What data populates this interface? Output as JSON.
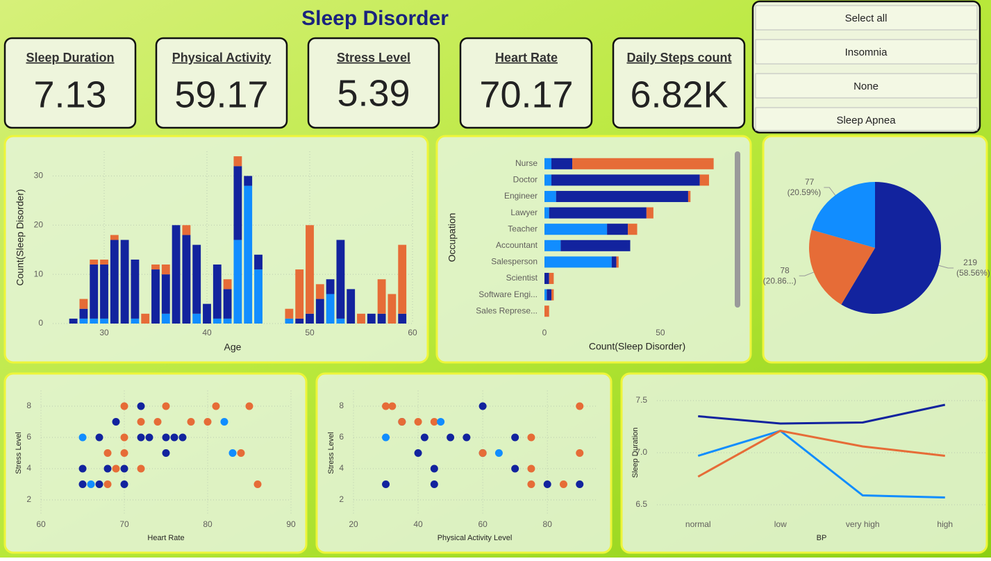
{
  "header": {
    "title": "Sleep Disorder"
  },
  "kpis": [
    {
      "label": "Sleep Duration",
      "value": "7.13"
    },
    {
      "label": "Physical Activity",
      "value": "59.17"
    },
    {
      "label": "Stress Level",
      "value": "5.39"
    },
    {
      "label": "Heart Rate",
      "value": "70.17"
    },
    {
      "label": "Daily Steps count",
      "value": "6.82K"
    }
  ],
  "slicer": {
    "items": [
      "Select all",
      "Insomnia",
      "None",
      "Sleep Apnea"
    ]
  },
  "chart_data": [
    {
      "type": "bar",
      "x": [
        27,
        28,
        29,
        30,
        31,
        32,
        33,
        34,
        35,
        36,
        37,
        38,
        39,
        40,
        41,
        42,
        43,
        44,
        45,
        48,
        49,
        50,
        51,
        52,
        53,
        54,
        55,
        56,
        57,
        58,
        59
      ],
      "series": [
        {
          "color": "#118DFF",
          "values": [
            0,
            1,
            1,
            1,
            0,
            0,
            1,
            0,
            0,
            2,
            0,
            0,
            2,
            0,
            1,
            1,
            17,
            28,
            11,
            1,
            0,
            0,
            0,
            6,
            1,
            0,
            0,
            0,
            0,
            0,
            0
          ]
        },
        {
          "color": "#12239E",
          "values": [
            1,
            2,
            11,
            11,
            17,
            17,
            12,
            0,
            11,
            8,
            20,
            18,
            14,
            4,
            11,
            6,
            15,
            2,
            3,
            0,
            1,
            2,
            5,
            3,
            16,
            7,
            0,
            2,
            2,
            0,
            2
          ]
        },
        {
          "color": "#E66C37",
          "values": [
            0,
            2,
            1,
            1,
            1,
            0,
            0,
            2,
            1,
            2,
            0,
            2,
            0,
            0,
            0,
            2,
            2,
            0,
            0,
            2,
            10,
            18,
            3,
            0,
            0,
            0,
            2,
            0,
            7,
            6,
            14
          ]
        }
      ],
      "xlim": [
        25,
        60
      ],
      "xticks": [
        30,
        40,
        50,
        60
      ],
      "ylim": [
        0,
        35
      ],
      "yticks": [
        0,
        10,
        20,
        30
      ],
      "x_label": "Age",
      "y_label": "Count(Sleep Disorder)",
      "grid": true
    },
    {
      "type": "barh",
      "categories": [
        "Nurse",
        "Doctor",
        "Engineer",
        "Lawyer",
        "Teacher",
        "Accountant",
        "Salesperson",
        "Scientist",
        "Software Engi...",
        "Sales Represe..."
      ],
      "series": [
        {
          "color": "#118DFF",
          "values": [
            3,
            3,
            5,
            2,
            27,
            7,
            29,
            0,
            1,
            0
          ]
        },
        {
          "color": "#12239E",
          "values": [
            9,
            64,
            57,
            42,
            9,
            30,
            2,
            2,
            2,
            0
          ]
        },
        {
          "color": "#E66C37",
          "values": [
            61,
            4,
            1,
            3,
            4,
            0,
            1,
            2,
            1,
            2
          ]
        }
      ],
      "xlim": [
        0,
        80
      ],
      "xticks": [
        0,
        50
      ],
      "x_label": "Count(Sleep Disorder)",
      "y_label": "Occupation"
    },
    {
      "type": "pie",
      "values": [
        219,
        78,
        77
      ],
      "percent_labels": [
        "(58.56%)",
        "(20.86...)",
        "(20.59%)"
      ],
      "colors": [
        "#12239E",
        "#E66C37",
        "#118DFF"
      ]
    },
    {
      "type": "scatter",
      "series": [
        {
          "color": "#12239E",
          "x": [
            72,
            69,
            67,
            72,
            73,
            75,
            76,
            77,
            75,
            65,
            68,
            70,
            65,
            67,
            70
          ],
          "values": [
            8,
            7,
            6,
            6,
            6,
            6,
            6,
            6,
            5,
            4,
            4,
            4,
            3,
            3,
            3
          ]
        },
        {
          "color": "#E66C37",
          "x": [
            70,
            75,
            81,
            85,
            72,
            74,
            78,
            80,
            70,
            68,
            70,
            84,
            69,
            72,
            68,
            86
          ],
          "values": [
            8,
            8,
            8,
            8,
            7,
            7,
            7,
            7,
            6,
            5,
            5,
            5,
            4,
            4,
            3,
            3
          ]
        },
        {
          "color": "#118DFF",
          "x": [
            65,
            82,
            83,
            66
          ],
          "values": [
            6,
            7,
            5,
            3
          ]
        }
      ],
      "xlim": [
        60,
        90
      ],
      "xticks": [
        60,
        70,
        80,
        90
      ],
      "ylim": [
        1,
        9
      ],
      "yticks": [
        2,
        4,
        6,
        8
      ],
      "x_label": "Heart Rate",
      "y_label": "Stress Level",
      "grid": true
    },
    {
      "type": "scatter",
      "series": [
        {
          "color": "#12239E",
          "x": [
            60,
            35,
            42,
            50,
            55,
            70,
            40,
            60,
            45,
            70,
            30,
            45,
            80,
            90
          ],
          "values": [
            8,
            7,
            6,
            6,
            6,
            6,
            5,
            5,
            4,
            4,
            3,
            3,
            3,
            3
          ]
        },
        {
          "color": "#E66C37",
          "x": [
            30,
            32,
            35,
            40,
            45,
            90,
            75,
            60,
            90,
            75,
            75,
            85
          ],
          "values": [
            8,
            8,
            7,
            7,
            7,
            8,
            6,
            5,
            5,
            4,
            3,
            3
          ]
        },
        {
          "color": "#118DFF",
          "x": [
            30,
            47,
            65
          ],
          "values": [
            6,
            7,
            5
          ]
        }
      ],
      "xlim": [
        20,
        95
      ],
      "xticks": [
        20,
        40,
        60,
        80
      ],
      "ylim": [
        1,
        9
      ],
      "yticks": [
        2,
        4,
        6,
        8
      ],
      "x_label": "Physical Activity Level",
      "y_label": "Stress Level",
      "grid": true
    },
    {
      "type": "line",
      "categories": [
        "normal",
        "low",
        "very high",
        "high"
      ],
      "series": [
        {
          "color": "#12239E",
          "values": [
            7.35,
            7.28,
            7.29,
            7.46
          ]
        },
        {
          "color": "#118DFF",
          "values": [
            6.97,
            7.21,
            6.59,
            6.57
          ]
        },
        {
          "color": "#E66C37",
          "values": [
            6.77,
            7.21,
            7.06,
            6.97
          ]
        }
      ],
      "ylim": [
        6.4,
        7.6
      ],
      "yticks": [
        6.5,
        {
          "value": 7,
          "label": "7.0"
        },
        7.5
      ],
      "x_label": "BP",
      "y_label": "Sleep Duration",
      "grid": true
    }
  ]
}
